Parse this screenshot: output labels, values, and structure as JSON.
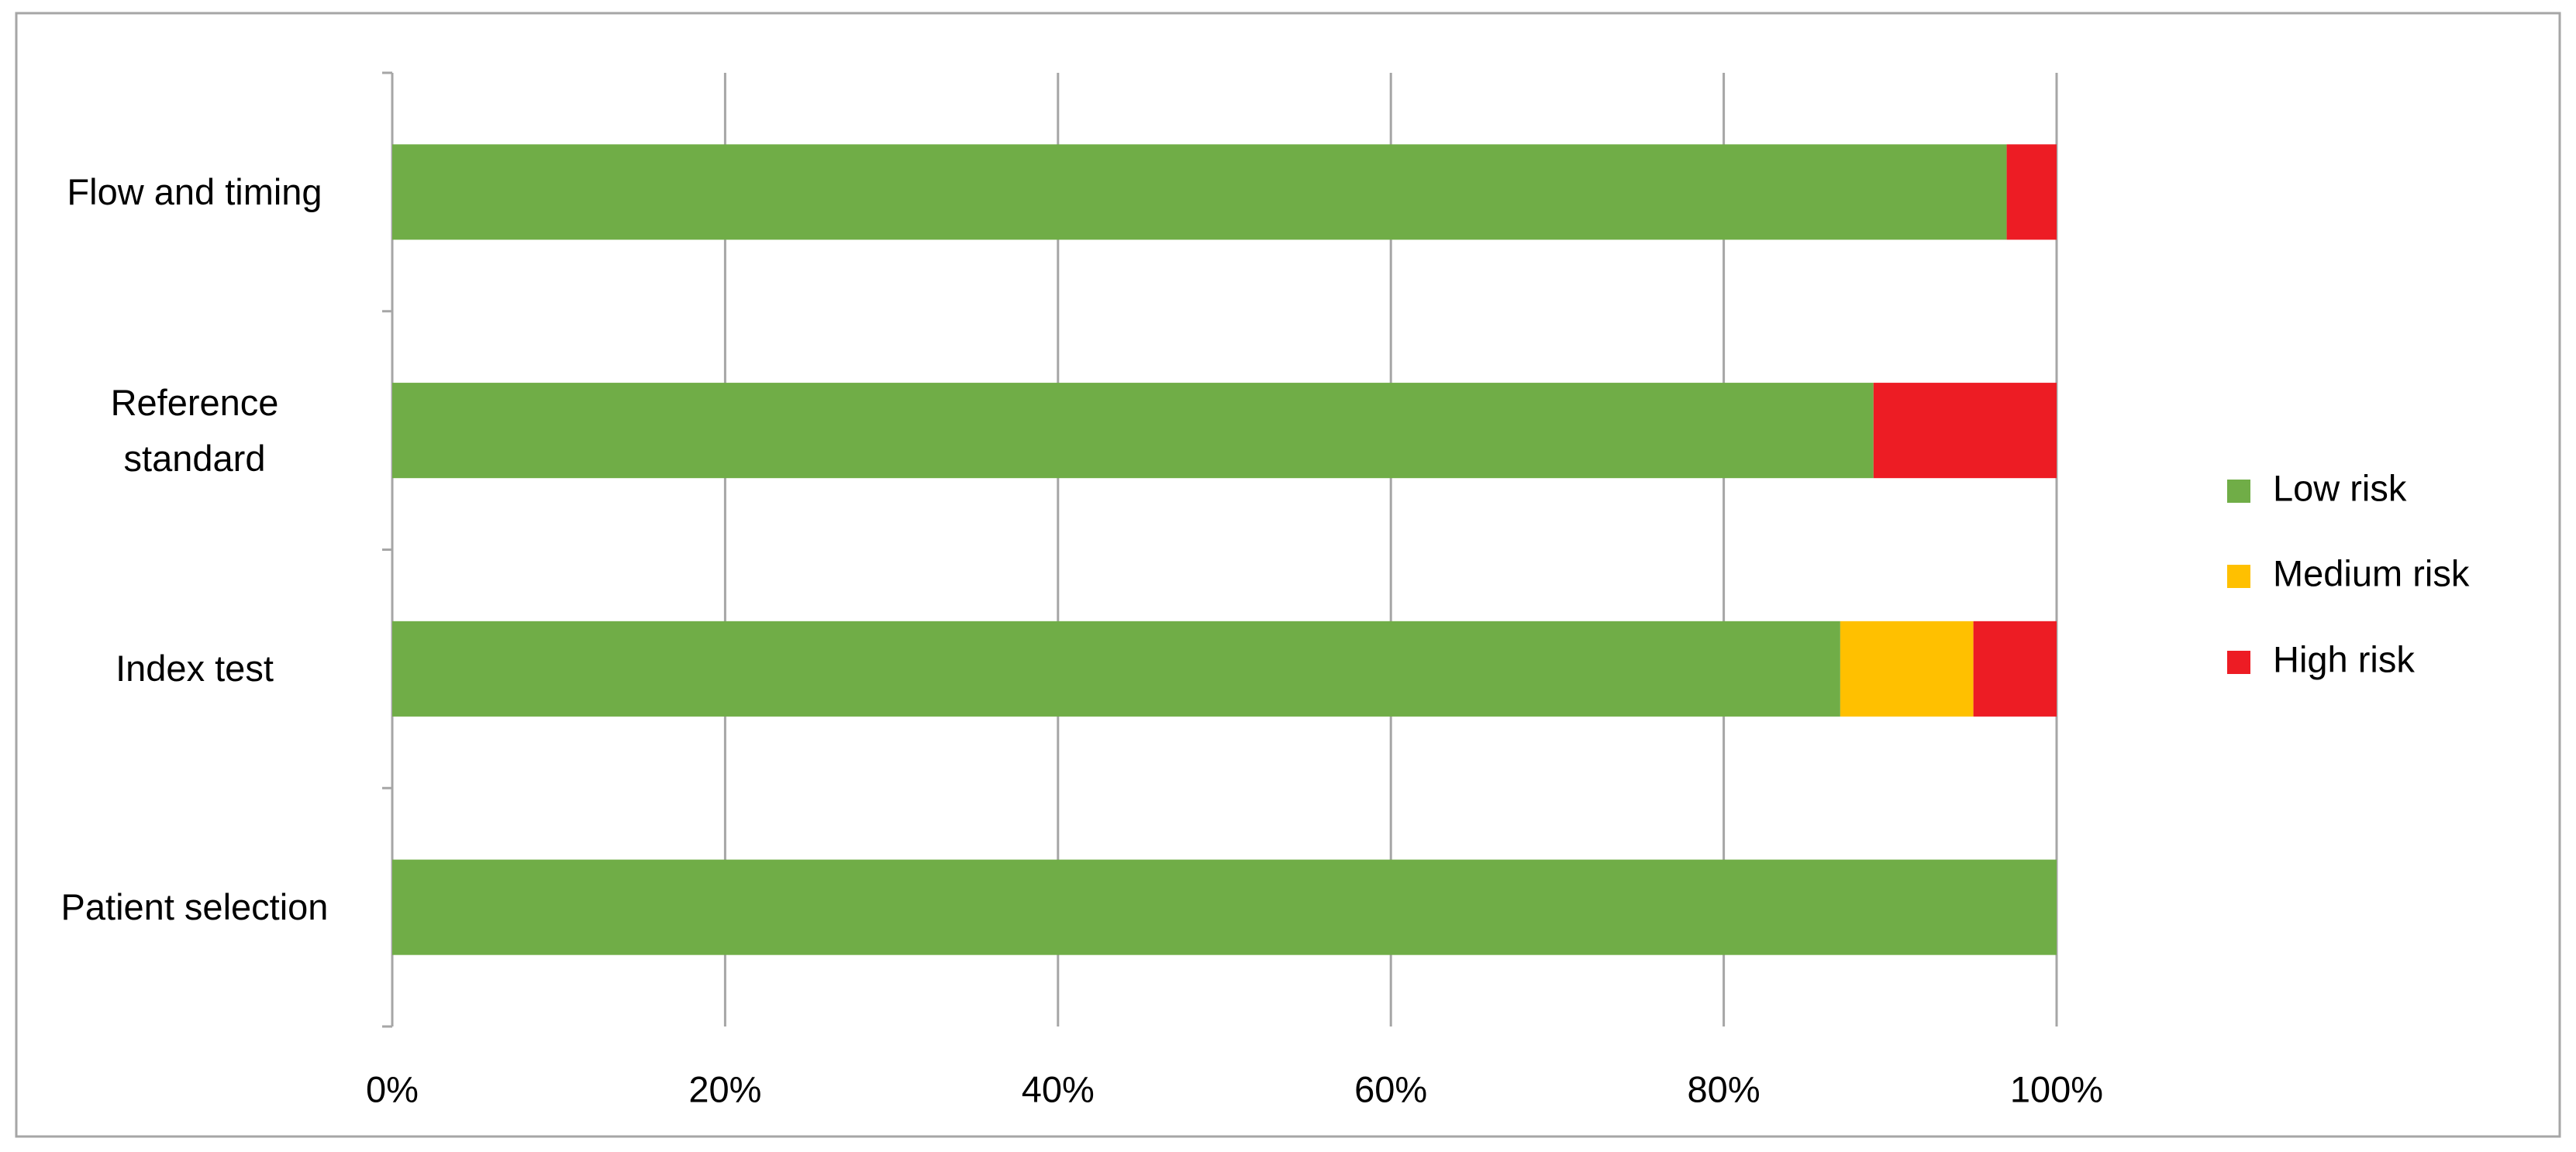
{
  "chart_data": {
    "type": "stacked-bar-horizontal",
    "categories": [
      "Patient selection",
      "Index test",
      "Reference standard",
      "Flow and timing"
    ],
    "series": [
      {
        "name": "Low risk",
        "color": "#70ad47",
        "values": [
          100,
          87,
          89,
          97
        ]
      },
      {
        "name": "Medium risk",
        "color": "#ffc000",
        "values": [
          0,
          8,
          0,
          0
        ]
      },
      {
        "name": "High risk",
        "color": "#ed1c24",
        "values": [
          0,
          5,
          11,
          3
        ]
      }
    ],
    "xlim": [
      0,
      100
    ],
    "xticks": [
      {
        "value": 0,
        "label": "0%"
      },
      {
        "value": 20,
        "label": "20%"
      },
      {
        "value": 40,
        "label": "40%"
      },
      {
        "value": 60,
        "label": "60%"
      },
      {
        "value": 80,
        "label": "80%"
      },
      {
        "value": 100,
        "label": "100%"
      }
    ],
    "grid": true,
    "legend": "right"
  }
}
